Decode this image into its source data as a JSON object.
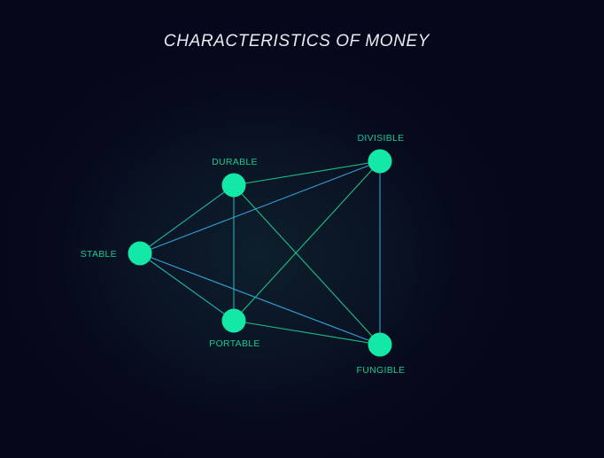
{
  "title": "CHARACTERISTICS OF MONEY",
  "colors": {
    "node": "#13e8a7",
    "label": "#18c992",
    "edge_green": "#1fc98d",
    "edge_blue": "#34a9df",
    "edge_teal": "#22b9b3"
  },
  "nodes": [
    {
      "id": "durable",
      "label": "DURABLE"
    },
    {
      "id": "divisible",
      "label": "DIVISIBLE"
    },
    {
      "id": "stable",
      "label": "STABLE"
    },
    {
      "id": "portable",
      "label": "PORTABLE"
    },
    {
      "id": "fungible",
      "label": "FUNGIBLE"
    }
  ],
  "edges": [
    {
      "from": "durable",
      "to": "divisible",
      "tone": "green"
    },
    {
      "from": "durable",
      "to": "stable",
      "tone": "teal"
    },
    {
      "from": "durable",
      "to": "portable",
      "tone": "teal"
    },
    {
      "from": "durable",
      "to": "fungible",
      "tone": "green"
    },
    {
      "from": "divisible",
      "to": "stable",
      "tone": "blue"
    },
    {
      "from": "divisible",
      "to": "portable",
      "tone": "green"
    },
    {
      "from": "divisible",
      "to": "fungible",
      "tone": "blue"
    },
    {
      "from": "stable",
      "to": "portable",
      "tone": "teal"
    },
    {
      "from": "stable",
      "to": "fungible",
      "tone": "blue"
    },
    {
      "from": "portable",
      "to": "fungible",
      "tone": "green"
    }
  ]
}
